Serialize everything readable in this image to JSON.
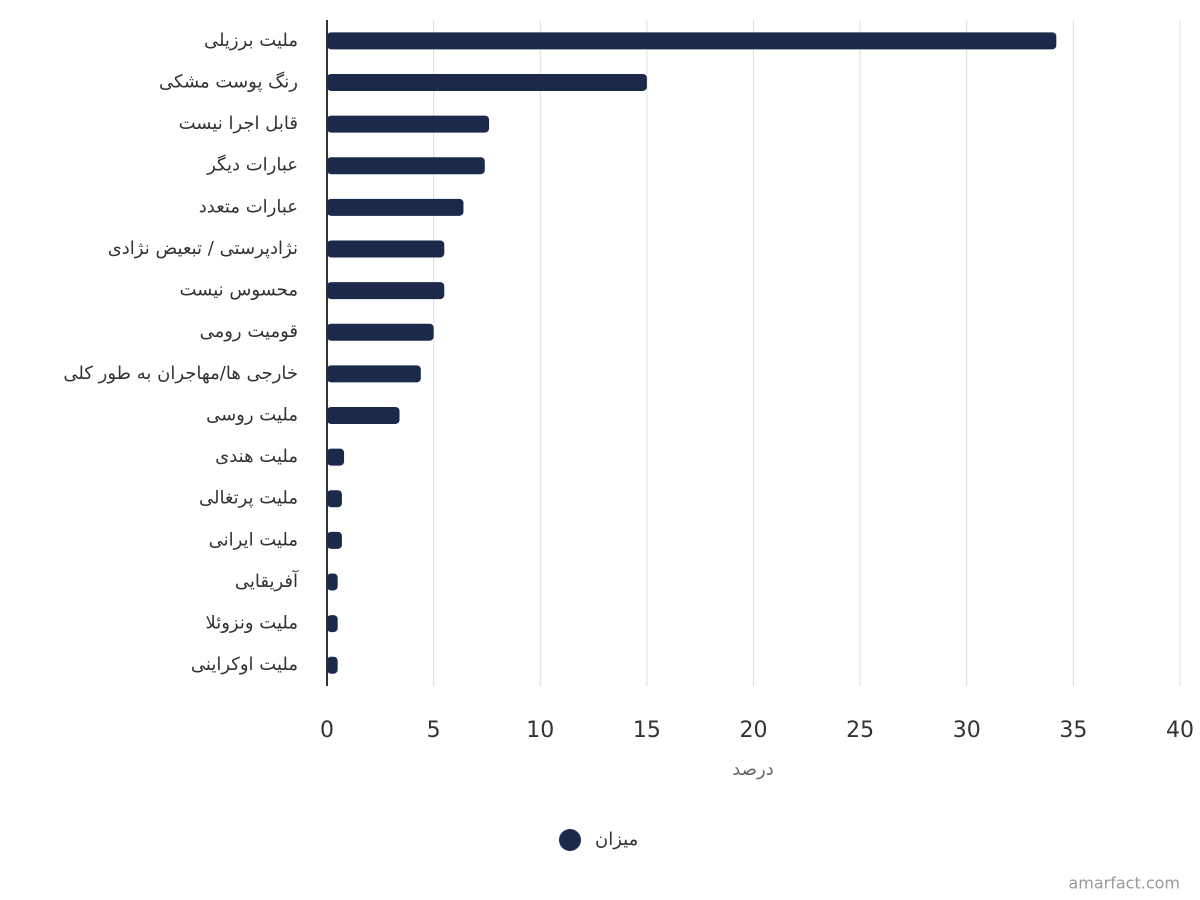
{
  "chart_data": {
    "type": "bar",
    "orientation": "horizontal",
    "categories": [
      "ملیت برزیلی",
      "رنگ پوست مشکی",
      "قابل اجرا نیست",
      "عبارات دیگر",
      "عبارات متعدد",
      "نژادپرستی / تبعیض نژادی",
      "محسوس نیست",
      "قومیت رومی",
      "خارجی ها/مهاجران به طور کلی",
      "ملیت روسی",
      "ملیت هندی",
      "ملیت پرتغالی",
      "ملیت ایرانی",
      "آفریقایی",
      "ملیت ونزوئلا",
      "ملیت اوکراینی"
    ],
    "series": [
      {
        "name": "میزان",
        "color": "#1b2a4a",
        "values": [
          34.2,
          15.0,
          7.6,
          7.4,
          6.4,
          5.5,
          5.5,
          5.0,
          4.4,
          3.4,
          0.8,
          0.7,
          0.7,
          0.5,
          0.5,
          0.5
        ]
      }
    ],
    "x_label": "درصد",
    "xlim": [
      0,
      40
    ],
    "xticks": [
      0,
      5,
      10,
      15,
      20,
      25,
      30,
      35,
      40
    ],
    "grid": true,
    "legend": "bottom",
    "watermark": "amarfact.com"
  }
}
